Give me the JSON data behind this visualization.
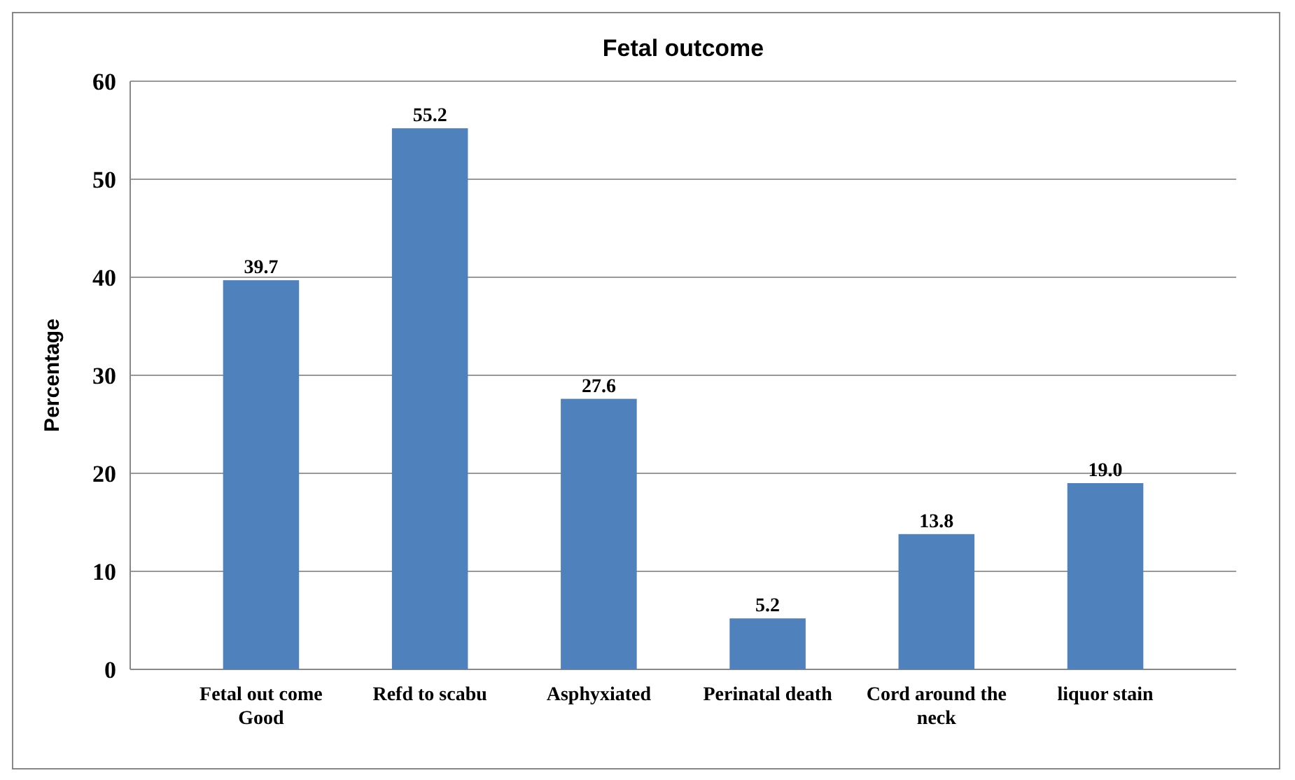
{
  "chart_data": {
    "type": "bar",
    "title": "Fetal outcome",
    "ylabel": "Percentage",
    "categories": [
      "Fetal out come Good",
      "Refd to scabu",
      "Asphyxiated",
      "Perinatal death",
      "Cord around the neck",
      "liquor stain"
    ],
    "values": [
      39.7,
      55.2,
      27.6,
      5.2,
      13.8,
      19.0
    ],
    "value_labels": [
      "39.7",
      "55.2",
      "27.6",
      "5.2",
      "13.8",
      "19.0"
    ],
    "color": "#4f81bd",
    "ylim": [
      0,
      60
    ],
    "yticks": [
      0,
      10,
      20,
      30,
      40,
      50,
      60
    ],
    "grid": "y"
  }
}
